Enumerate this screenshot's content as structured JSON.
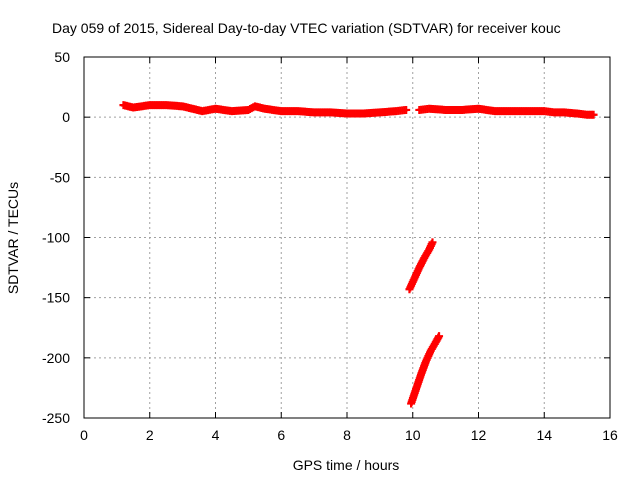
{
  "chart_data": {
    "type": "scatter",
    "title": "Day 059 of 2015, Sidereal Day-to-day VTEC variation (SDTVAR) for receiver kouc",
    "xlabel": "GPS time / hours",
    "ylabel": "SDTVAR / TECUs",
    "xlim": [
      0,
      16
    ],
    "ylim": [
      -250,
      50
    ],
    "xticks": [
      0,
      2,
      4,
      6,
      8,
      10,
      12,
      14,
      16
    ],
    "yticks": [
      -250,
      -200,
      -150,
      -100,
      -50,
      0,
      50
    ],
    "grid": true,
    "marker": "+",
    "color": "#ff0000",
    "series": [
      {
        "name": "main-trace-segment-1",
        "x": [
          1.2,
          1.5,
          2.0,
          2.5,
          3.0,
          3.3,
          3.6,
          4.0,
          4.5,
          5.0,
          5.2,
          5.5,
          6.0,
          6.5,
          7.0,
          7.5,
          8.0,
          8.5,
          9.0,
          9.5,
          9.8
        ],
        "y": [
          10,
          8,
          10,
          10,
          9,
          7,
          5,
          7,
          5,
          6,
          9,
          7,
          5,
          5,
          4,
          4,
          3,
          3,
          4,
          5,
          6
        ]
      },
      {
        "name": "main-trace-segment-2",
        "x": [
          10.2,
          10.5,
          11.0,
          11.5,
          12.0,
          12.5,
          13.0,
          13.5,
          14.0,
          14.3,
          14.6,
          15.0,
          15.3,
          15.5
        ],
        "y": [
          6,
          7,
          6,
          6,
          7,
          5,
          5,
          5,
          5,
          4,
          4,
          3,
          2,
          2
        ]
      },
      {
        "name": "descent-segment-upper",
        "x": [
          9.9,
          10.05,
          10.2,
          10.35,
          10.5,
          10.6
        ],
        "y": [
          -143,
          -134,
          -125,
          -117,
          -110,
          -104
        ]
      },
      {
        "name": "descent-segment-lower",
        "x": [
          9.95,
          10.1,
          10.25,
          10.4,
          10.55,
          10.7,
          10.8
        ],
        "y": [
          -238,
          -226,
          -214,
          -203,
          -194,
          -187,
          -182
        ]
      }
    ]
  }
}
